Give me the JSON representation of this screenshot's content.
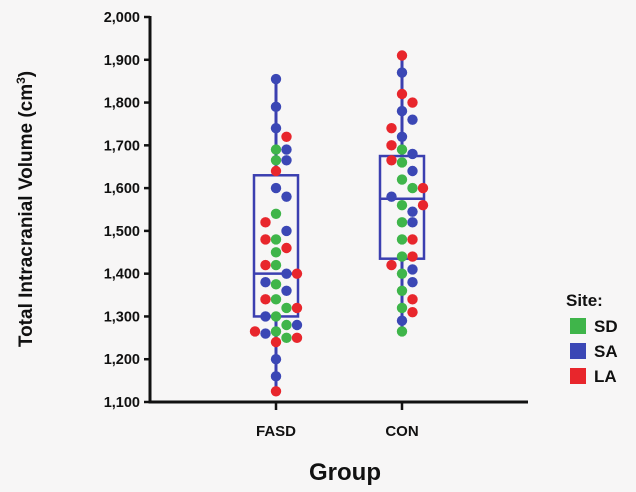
{
  "chart_data": {
    "type": "scatter",
    "subtype": "box-and-dot",
    "xlabel": "Group",
    "ylabel_main": "Total Intracranial Volume (cm",
    "ylabel_sup": "3",
    "ylabel_close": ")",
    "ylim": [
      1100,
      2000
    ],
    "yticks": [
      1100,
      1200,
      1300,
      1400,
      1500,
      1600,
      1700,
      1800,
      1900,
      2000
    ],
    "ytick_labels": [
      "1,100",
      "1,200",
      "1,300",
      "1,400",
      "1,500",
      "1,600",
      "1,700",
      "1,800",
      "1,900",
      "2,000"
    ],
    "categories": [
      "FASD",
      "CON"
    ],
    "legend": {
      "title": "Site:",
      "placement": "right",
      "entries": [
        {
          "label": "SD",
          "color": "#3fb54a"
        },
        {
          "label": "SA",
          "color": "#3b47b5"
        },
        {
          "label": "LA",
          "color": "#e8262c"
        }
      ]
    },
    "box_color": "#3b3fb0",
    "boxes": [
      {
        "category": "FASD",
        "min": 1125,
        "q1": 1300,
        "median": 1400,
        "q3": 1630,
        "max": 1855
      },
      {
        "category": "CON",
        "min": 1265,
        "q1": 1435,
        "median": 1575,
        "q3": 1675,
        "max": 1910
      }
    ],
    "series": [
      {
        "name": "SD",
        "color": "#3fb54a",
        "points": [
          {
            "group": "FASD",
            "y": 1690
          },
          {
            "group": "FASD",
            "y": 1665
          },
          {
            "group": "FASD",
            "y": 1540
          },
          {
            "group": "FASD",
            "y": 1480
          },
          {
            "group": "FASD",
            "y": 1450
          },
          {
            "group": "FASD",
            "y": 1420
          },
          {
            "group": "FASD",
            "y": 1375
          },
          {
            "group": "FASD",
            "y": 1340
          },
          {
            "group": "FASD",
            "y": 1320
          },
          {
            "group": "FASD",
            "y": 1300
          },
          {
            "group": "FASD",
            "y": 1280
          },
          {
            "group": "FASD",
            "y": 1265
          },
          {
            "group": "FASD",
            "y": 1250
          },
          {
            "group": "CON",
            "y": 1690
          },
          {
            "group": "CON",
            "y": 1660
          },
          {
            "group": "CON",
            "y": 1620
          },
          {
            "group": "CON",
            "y": 1600
          },
          {
            "group": "CON",
            "y": 1560
          },
          {
            "group": "CON",
            "y": 1520
          },
          {
            "group": "CON",
            "y": 1480
          },
          {
            "group": "CON",
            "y": 1440
          },
          {
            "group": "CON",
            "y": 1400
          },
          {
            "group": "CON",
            "y": 1360
          },
          {
            "group": "CON",
            "y": 1320
          },
          {
            "group": "CON",
            "y": 1265
          }
        ]
      },
      {
        "name": "SA",
        "color": "#3b47b5",
        "points": [
          {
            "group": "FASD",
            "y": 1855
          },
          {
            "group": "FASD",
            "y": 1790
          },
          {
            "group": "FASD",
            "y": 1740
          },
          {
            "group": "FASD",
            "y": 1690
          },
          {
            "group": "FASD",
            "y": 1665
          },
          {
            "group": "FASD",
            "y": 1600
          },
          {
            "group": "FASD",
            "y": 1580
          },
          {
            "group": "FASD",
            "y": 1500
          },
          {
            "group": "FASD",
            "y": 1400
          },
          {
            "group": "FASD",
            "y": 1380
          },
          {
            "group": "FASD",
            "y": 1360
          },
          {
            "group": "FASD",
            "y": 1300
          },
          {
            "group": "FASD",
            "y": 1280
          },
          {
            "group": "FASD",
            "y": 1260
          },
          {
            "group": "FASD",
            "y": 1200
          },
          {
            "group": "FASD",
            "y": 1160
          },
          {
            "group": "CON",
            "y": 1870
          },
          {
            "group": "CON",
            "y": 1780
          },
          {
            "group": "CON",
            "y": 1760
          },
          {
            "group": "CON",
            "y": 1720
          },
          {
            "group": "CON",
            "y": 1680
          },
          {
            "group": "CON",
            "y": 1640
          },
          {
            "group": "CON",
            "y": 1580
          },
          {
            "group": "CON",
            "y": 1545
          },
          {
            "group": "CON",
            "y": 1520
          },
          {
            "group": "CON",
            "y": 1410
          },
          {
            "group": "CON",
            "y": 1380
          },
          {
            "group": "CON",
            "y": 1290
          }
        ]
      },
      {
        "name": "LA",
        "color": "#e8262c",
        "points": [
          {
            "group": "FASD",
            "y": 1720
          },
          {
            "group": "FASD",
            "y": 1640
          },
          {
            "group": "FASD",
            "y": 1520
          },
          {
            "group": "FASD",
            "y": 1480
          },
          {
            "group": "FASD",
            "y": 1460
          },
          {
            "group": "FASD",
            "y": 1420
          },
          {
            "group": "FASD",
            "y": 1400
          },
          {
            "group": "FASD",
            "y": 1340
          },
          {
            "group": "FASD",
            "y": 1320
          },
          {
            "group": "FASD",
            "y": 1265
          },
          {
            "group": "FASD",
            "y": 1250
          },
          {
            "group": "FASD",
            "y": 1240
          },
          {
            "group": "FASD",
            "y": 1125
          },
          {
            "group": "CON",
            "y": 1910
          },
          {
            "group": "CON",
            "y": 1820
          },
          {
            "group": "CON",
            "y": 1800
          },
          {
            "group": "CON",
            "y": 1740
          },
          {
            "group": "CON",
            "y": 1700
          },
          {
            "group": "CON",
            "y": 1665
          },
          {
            "group": "CON",
            "y": 1600
          },
          {
            "group": "CON",
            "y": 1560
          },
          {
            "group": "CON",
            "y": 1480
          },
          {
            "group": "CON",
            "y": 1440
          },
          {
            "group": "CON",
            "y": 1420
          },
          {
            "group": "CON",
            "y": 1340
          },
          {
            "group": "CON",
            "y": 1310
          }
        ]
      }
    ]
  }
}
